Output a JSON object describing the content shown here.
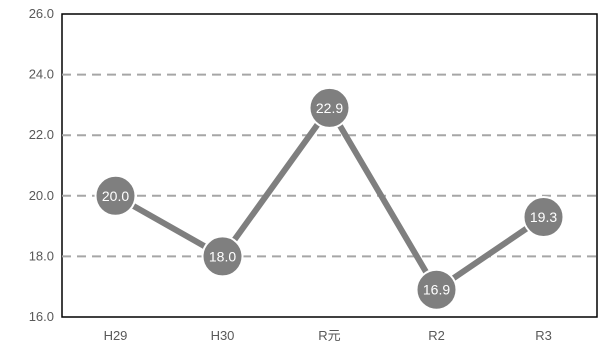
{
  "chart_data": {
    "type": "line",
    "title": "",
    "xlabel": "",
    "ylabel": "",
    "categories": [
      "H29",
      "H30",
      "R元",
      "R2",
      "R3"
    ],
    "values": [
      20.0,
      18.0,
      22.9,
      16.9,
      19.3
    ],
    "data_labels": [
      "20.0",
      "18.0",
      "22.9",
      "16.9",
      "19.3"
    ],
    "ylim": [
      16.0,
      26.0
    ],
    "yticks": [
      "16.0",
      "18.0",
      "20.0",
      "22.0",
      "24.0",
      "26.0"
    ],
    "grid": "horizontal dashed",
    "legend": "none",
    "colors": {
      "line": "#7f7f7f",
      "marker": "#7f7f7f",
      "marker_border": "#ffffff",
      "grid": "#a6a6a6",
      "frame": "#000000",
      "label_text": "#ffffff",
      "tick_text": "#595959"
    }
  }
}
